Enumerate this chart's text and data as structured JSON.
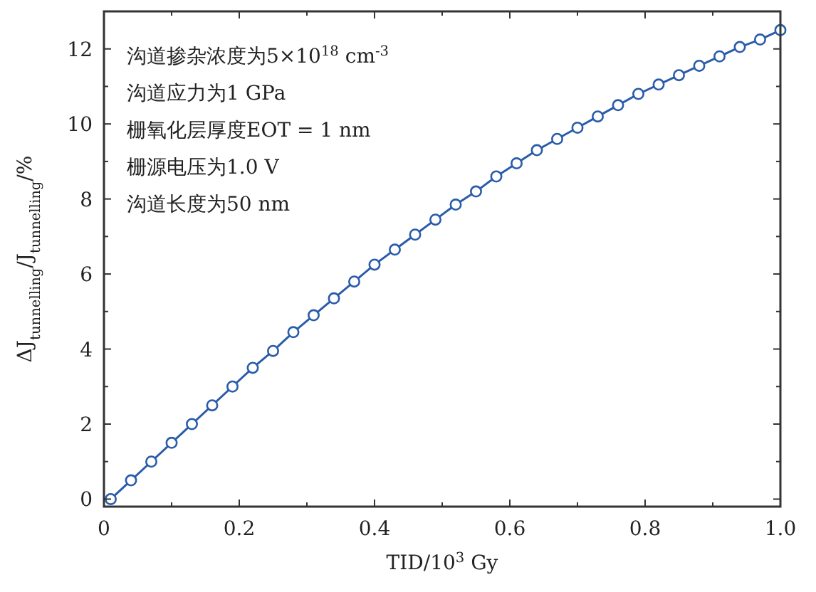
{
  "chart_data": {
    "type": "line",
    "xlabel": "TID/10$^{3}$ Gy",
    "ylabel": "ΔJ$_{tunnelling}$/J$_{tunnelling}$/%",
    "x": [
      0.01,
      0.04,
      0.07,
      0.1,
      0.13,
      0.16,
      0.19,
      0.22,
      0.25,
      0.28,
      0.31,
      0.34,
      0.37,
      0.4,
      0.43,
      0.46,
      0.49,
      0.52,
      0.55,
      0.58,
      0.61,
      0.64,
      0.67,
      0.7,
      0.73,
      0.76,
      0.79,
      0.82,
      0.85,
      0.88,
      0.91,
      0.94,
      0.97,
      1.0
    ],
    "series": [
      {
        "color": "#2a5caa",
        "values": [
          0,
          0.5,
          1.0,
          1.5,
          2.0,
          2.5,
          3.0,
          3.5,
          3.95,
          4.45,
          4.9,
          5.35,
          5.8,
          6.25,
          6.65,
          7.05,
          7.45,
          7.85,
          8.2,
          8.6,
          8.95,
          9.3,
          9.6,
          9.9,
          10.2,
          10.5,
          10.8,
          11.05,
          11.3,
          11.55,
          11.8,
          12.05,
          12.25,
          12.5
        ]
      }
    ],
    "xlim": [
      0,
      1.0
    ],
    "ylim": [
      -0.2,
      13
    ],
    "xticks": [
      0,
      {
        "value": 0.1,
        "label": null
      },
      0.2,
      {
        "value": 0.3,
        "label": null
      },
      0.4,
      {
        "value": 0.5,
        "label": null
      },
      0.6,
      {
        "value": 0.7,
        "label": null
      },
      0.8,
      {
        "value": 0.9,
        "label": null
      },
      {
        "value": 1.0,
        "label": "1.0"
      }
    ],
    "yticks": [
      0,
      {
        "value": 1,
        "label": null
      },
      2,
      {
        "value": 3,
        "label": null
      },
      4,
      {
        "value": 5,
        "label": null
      },
      6,
      {
        "value": 7,
        "label": null
      },
      8,
      {
        "value": 9,
        "label": null
      },
      10,
      {
        "value": 11,
        "label": null
      },
      12
    ],
    "marker": "circle",
    "line_style": "solid",
    "grid": false,
    "annotations": [
      "沟道掺杂浓度为5×10$^{18}$ cm$^{-3}$",
      "沟道应力为1 GPa",
      "栅氧化层厚度EOT = 1 nm",
      "栅源电压为1.0 V",
      "沟道长度为50 nm"
    ]
  }
}
